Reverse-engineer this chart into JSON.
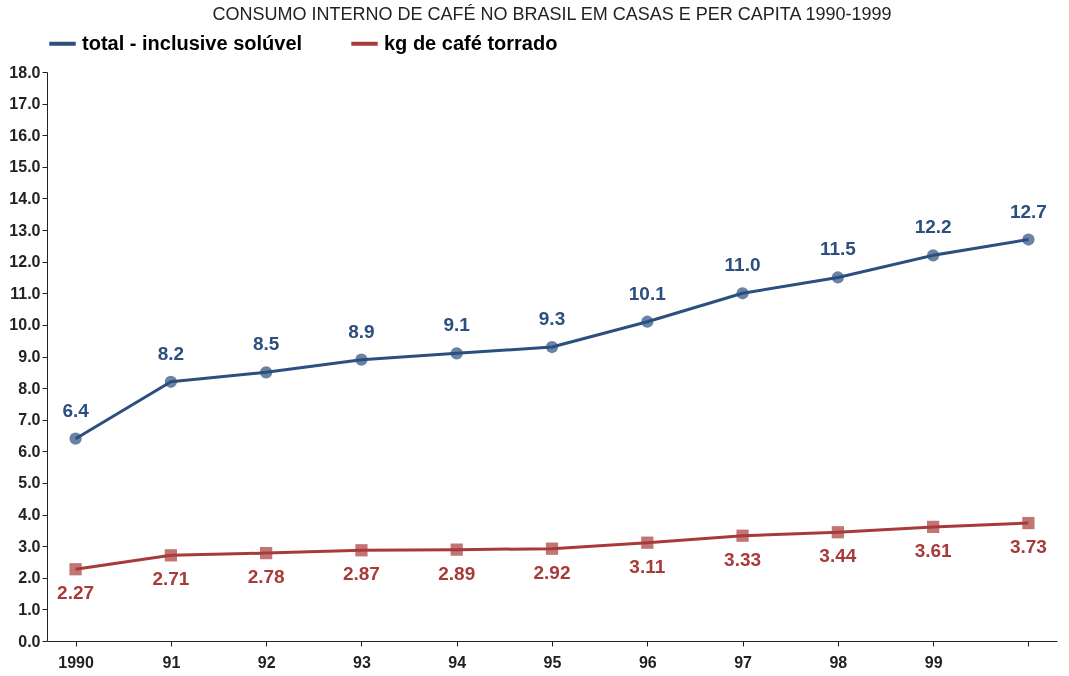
{
  "chart_data": {
    "type": "line",
    "title": "CONSUMO INTERNO DE CAFÉ NO BRASIL EM CASAS E PER CAPITA 1990-1999",
    "categories": [
      "1990",
      "91",
      "92",
      "93",
      "94",
      "95",
      "96",
      "97",
      "98",
      "99",
      null
    ],
    "series": [
      {
        "name": "total - inclusive solúvel",
        "color": "#2b4f7e",
        "marker": "circle",
        "values": [
          6.4,
          8.2,
          8.5,
          8.9,
          9.1,
          9.3,
          10.1,
          11.0,
          11.5,
          12.2,
          12.7
        ],
        "value_labels": [
          "6.4",
          "8.2",
          "8.5",
          "8.9",
          "9.1",
          "9.3",
          "10.1",
          "11.0",
          "11.5",
          "12.2",
          "12.7"
        ]
      },
      {
        "name": "kg de café torrado",
        "color": "#a83a3a",
        "marker": "square",
        "values": [
          2.27,
          2.71,
          2.78,
          2.87,
          2.89,
          2.92,
          3.11,
          3.33,
          3.44,
          3.61,
          3.73
        ],
        "value_labels": [
          "2.27",
          "2.71",
          "2.78",
          "2.87",
          "2.89",
          "2.92",
          "3.11",
          "3.33",
          "3.44",
          "3.61",
          "3.73"
        ]
      }
    ],
    "ylim": [
      0,
      18
    ],
    "yticks": [
      {
        "value": 0,
        "label": "0.0"
      },
      {
        "value": 1,
        "label": "1.0"
      },
      {
        "value": 2,
        "label": "2.0"
      },
      {
        "value": 3,
        "label": "3.0"
      },
      {
        "value": 4,
        "label": "4.0"
      },
      {
        "value": 5,
        "label": "5.0"
      },
      {
        "value": 6,
        "label": "6.0"
      },
      {
        "value": 7,
        "label": "7.0"
      },
      {
        "value": 8,
        "label": "8.0"
      },
      {
        "value": 9,
        "label": "9.0"
      },
      {
        "value": 10,
        "label": "10.0"
      },
      {
        "value": 11,
        "label": "11.0"
      },
      {
        "value": 12,
        "label": "12.0"
      },
      {
        "value": 13,
        "label": "13.0"
      },
      {
        "value": 14,
        "label": "14.0"
      },
      {
        "value": 15,
        "label": "15.0"
      },
      {
        "value": 16,
        "label": "16.0"
      },
      {
        "value": 17,
        "label": "17.0"
      },
      {
        "value": 18,
        "label": "18.0"
      }
    ],
    "grid": false,
    "legend": "top",
    "line_style": "solid"
  }
}
